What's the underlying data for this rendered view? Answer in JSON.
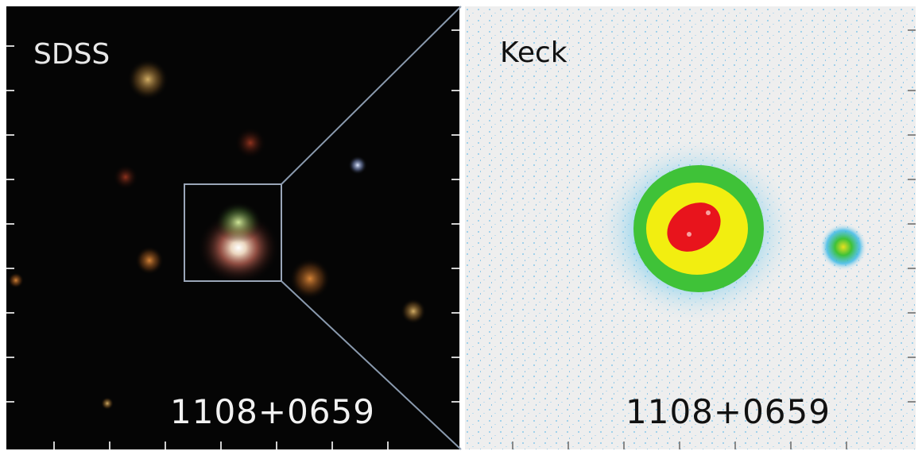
{
  "panels": {
    "left": {
      "survey": "SDSS",
      "object_id": "1108+0659"
    },
    "right": {
      "survey": "Keck",
      "object_id": "1108+0659"
    }
  },
  "colors": {
    "left_background": "#050505",
    "right_background": "#eeeeee",
    "keck_core": "#e8141c",
    "keck_inner": "#f2ee10",
    "keck_mid": "#3fc238",
    "keck_outer": "#35b8e8",
    "zoom_lines": "#8a9aae"
  }
}
